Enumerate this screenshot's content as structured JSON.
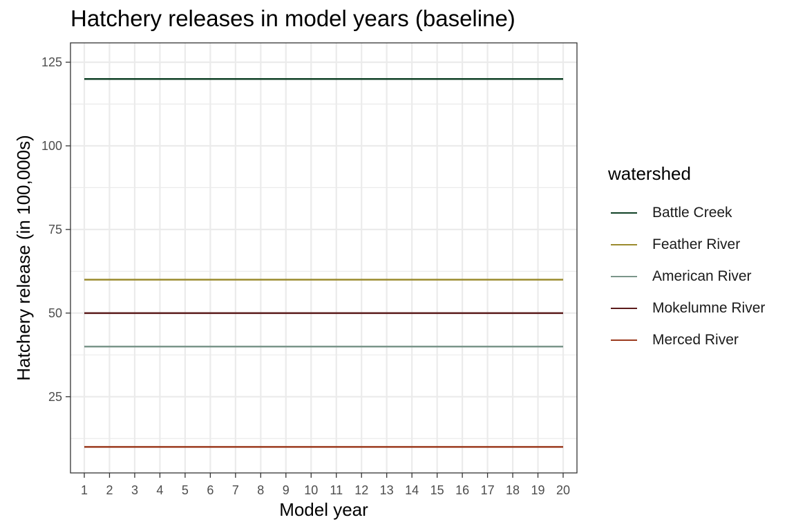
{
  "chart_data": {
    "type": "line",
    "title": "Hatchery releases in model years (baseline)",
    "xlabel": "Model year",
    "ylabel": "Hatchery release (in 100,000s)",
    "x": [
      1,
      2,
      3,
      4,
      5,
      6,
      7,
      8,
      9,
      10,
      11,
      12,
      13,
      14,
      15,
      16,
      17,
      18,
      19,
      20
    ],
    "xlim": [
      1,
      20
    ],
    "ylim": [
      8,
      125
    ],
    "yticks": [
      25,
      50,
      75,
      100,
      125
    ],
    "grid": true,
    "legend_title": "watershed",
    "legend_position": "right",
    "series": [
      {
        "name": "Battle Creek",
        "color": "#0f4025",
        "values": [
          120,
          120,
          120,
          120,
          120,
          120,
          120,
          120,
          120,
          120,
          120,
          120,
          120,
          120,
          120,
          120,
          120,
          120,
          120,
          120
        ]
      },
      {
        "name": "Feather River",
        "color": "#9a8a2c",
        "values": [
          60,
          60,
          60,
          60,
          60,
          60,
          60,
          60,
          60,
          60,
          60,
          60,
          60,
          60,
          60,
          60,
          60,
          60,
          60,
          60
        ]
      },
      {
        "name": "American River",
        "color": "#7a958a",
        "values": [
          40,
          40,
          40,
          40,
          40,
          40,
          40,
          40,
          40,
          40,
          40,
          40,
          40,
          40,
          40,
          40,
          40,
          40,
          40,
          40
        ]
      },
      {
        "name": "Mokelumne River",
        "color": "#5a1a1a",
        "values": [
          50,
          50,
          50,
          50,
          50,
          50,
          50,
          50,
          50,
          50,
          50,
          50,
          50,
          50,
          50,
          50,
          50,
          50,
          50,
          50
        ]
      },
      {
        "name": "Merced River",
        "color": "#9b3a1e",
        "values": [
          10,
          10,
          10,
          10,
          10,
          10,
          10,
          10,
          10,
          10,
          10,
          10,
          10,
          10,
          10,
          10,
          10,
          10,
          10,
          10
        ]
      }
    ]
  }
}
